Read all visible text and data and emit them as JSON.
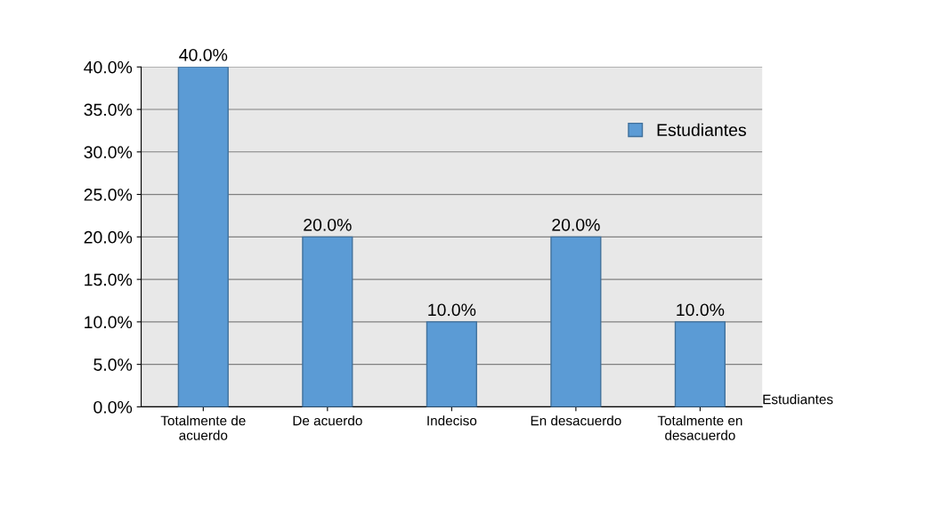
{
  "chart_data": {
    "type": "bar",
    "categories": [
      "Totalmente de\nacuerdo",
      "De acuerdo",
      "Indeciso",
      "En desacuerdo",
      "Totalmente en\ndesacuerdo"
    ],
    "series": [
      {
        "name": "Estudiantes",
        "color": "#5b9bd5",
        "values": [
          40,
          20,
          10,
          20,
          10
        ],
        "value_labels": [
          "40.0%",
          "20.0%",
          "10.0%",
          "20.0%",
          "10.0%"
        ]
      }
    ],
    "ylim": [
      0,
      40
    ],
    "yticks": [
      {
        "value": 0,
        "label": "0.0%"
      },
      {
        "value": 5,
        "label": "5.0%"
      },
      {
        "value": 10,
        "label": "10.0%"
      },
      {
        "value": 15,
        "label": "15.0%"
      },
      {
        "value": 20,
        "label": "20.0%"
      },
      {
        "value": 25,
        "label": "25.0%"
      },
      {
        "value": 30,
        "label": "30.0%"
      },
      {
        "value": 35,
        "label": "35.0%"
      },
      {
        "value": 40,
        "label": "40.0%"
      }
    ],
    "grid": "y",
    "legend": "top right",
    "annotations": [
      "Estudiantes"
    ]
  }
}
